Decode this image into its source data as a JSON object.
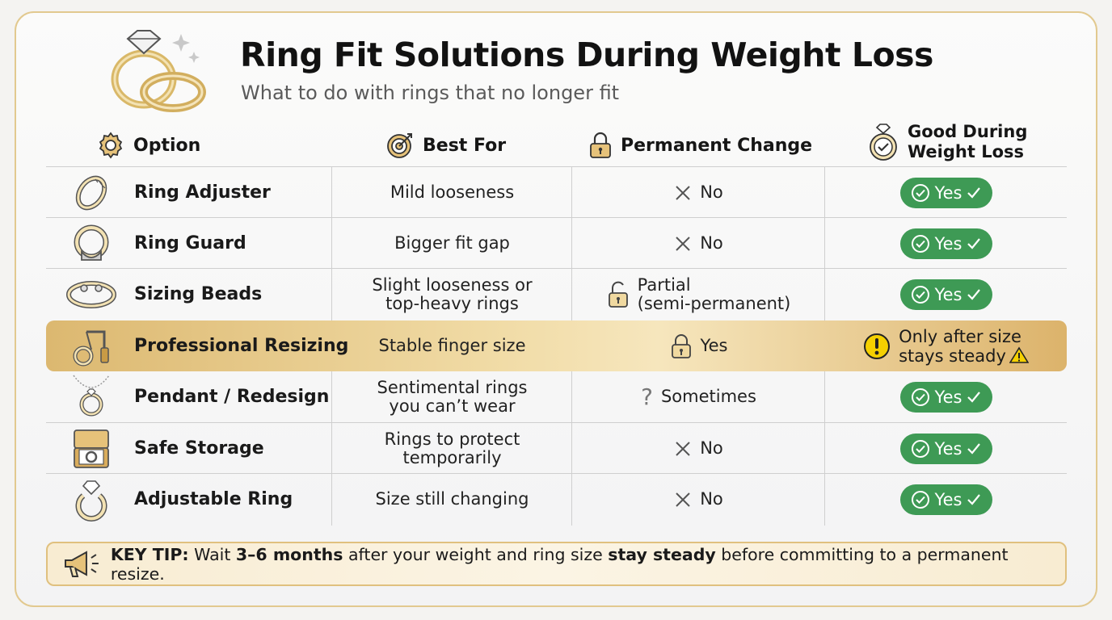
{
  "title": "Ring Fit Solutions During Weight Loss",
  "subtitle": "What to do with rings that no longer fit",
  "headers": {
    "option": "Option",
    "best_for": "Best For",
    "permanent_change": "Permanent Change",
    "good_line1": "Good During",
    "good_line2": "Weight Loss"
  },
  "rows": [
    {
      "icon": "ring-adjuster-icon",
      "name": "Ring Adjuster",
      "best_for": [
        "Mild looseness"
      ],
      "permanent": [
        "No"
      ],
      "permanent_icon": "x-icon",
      "good": "Yes"
    },
    {
      "icon": "ring-guard-icon",
      "name": "Ring Guard",
      "best_for": [
        "Bigger fit gap"
      ],
      "permanent": [
        "No"
      ],
      "permanent_icon": "x-icon",
      "good": "Yes"
    },
    {
      "icon": "sizing-beads-icon",
      "name": "Sizing Beads",
      "best_for": [
        "Slight looseness or",
        "top-heavy rings"
      ],
      "permanent": [
        "Partial",
        "(semi-permanent)"
      ],
      "permanent_icon": "open-lock-icon",
      "good": "Yes"
    },
    {
      "icon": "resizing-tool-icon",
      "name": "Professional Resizing",
      "best_for": [
        "Stable finger size"
      ],
      "permanent": [
        "Yes"
      ],
      "permanent_icon": "lock-icon",
      "good_warning": [
        "Only after size",
        "stays steady"
      ],
      "highlight": true
    },
    {
      "icon": "pendant-icon",
      "name": "Pendant / Redesign",
      "best_for": [
        "Sentimental rings",
        "you can’t wear"
      ],
      "permanent": [
        "Sometimes"
      ],
      "permanent_icon": "question-icon",
      "good": "Yes"
    },
    {
      "icon": "ring-box-icon",
      "name": "Safe Storage",
      "best_for": [
        "Rings to protect",
        "temporarily"
      ],
      "permanent": [
        "No"
      ],
      "permanent_icon": "x-icon",
      "good": "Yes"
    },
    {
      "icon": "adjustable-ring-icon",
      "name": "Adjustable Ring",
      "best_for": [
        "Size still changing"
      ],
      "permanent": [
        "No"
      ],
      "permanent_icon": "x-icon",
      "good": "Yes"
    }
  ],
  "tip": {
    "label": "KEY TIP:",
    "part1": " Wait ",
    "bold1": "3–6 months",
    "part2": " after your weight and ring size ",
    "bold2": "stay steady",
    "part3": " before committing to a permanent resize."
  },
  "colors": {
    "accent_gold": "#e2c98f",
    "yes_green": "#3e9a55",
    "warning_yellow": "#f5d000"
  }
}
